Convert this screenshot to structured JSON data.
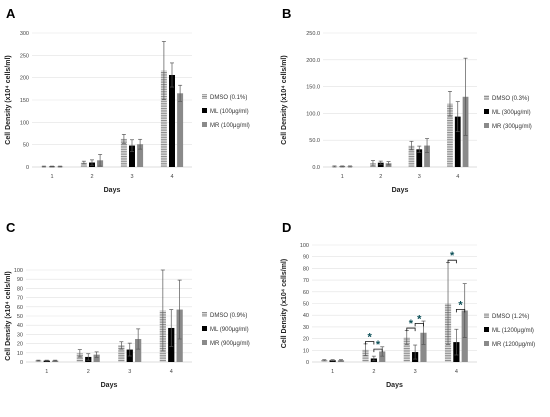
{
  "chart_data": [
    {
      "type": "bar",
      "panel": "A",
      "categories": [
        "1",
        "2",
        "3",
        "4"
      ],
      "xlabel": "Days",
      "ylabel": "Cell Density (x10⁴ cells/ml)",
      "ylim": [
        0,
        300
      ],
      "yticks": [
        "0",
        "50",
        "100",
        "150",
        "200",
        "250",
        "300"
      ],
      "grid": true,
      "legend_position": "right",
      "series": [
        {
          "name": "DMSO (0.1%)",
          "pattern": "horizontal-stripes",
          "values": [
            1,
            10,
            63,
            216
          ],
          "errors": [
            1,
            3,
            10,
            65
          ]
        },
        {
          "name": "ML (100μg/ml)",
          "pattern": "solid-black",
          "values": [
            1,
            10,
            48,
            206
          ],
          "errors": [
            1,
            6,
            13,
            27
          ]
        },
        {
          "name": "MR (100μg/ml)",
          "pattern": "solid-gray",
          "values": [
            1,
            15,
            51,
            165
          ],
          "errors": [
            1,
            13,
            11,
            18
          ]
        }
      ]
    },
    {
      "type": "bar",
      "panel": "B",
      "categories": [
        "1",
        "2",
        "3",
        "4"
      ],
      "xlabel": "Days",
      "ylabel": "Cell Density (x10⁴ cells/ml)",
      "ylim": [
        0,
        250
      ],
      "yticks": [
        "0.0",
        "50.0",
        "100.0",
        "150.0",
        "200.0",
        "250.0"
      ],
      "grid": true,
      "legend_position": "right",
      "series": [
        {
          "name": "DMSO (0.3%)",
          "pattern": "horizontal-stripes",
          "values": [
            1,
            7,
            40,
            118
          ],
          "errors": [
            1,
            5,
            8,
            23
          ]
        },
        {
          "name": "ML (300μg/ml)",
          "pattern": "solid-black",
          "values": [
            1,
            8,
            33,
            94
          ],
          "errors": [
            1,
            3,
            6,
            28
          ]
        },
        {
          "name": "MR (300μg/ml)",
          "pattern": "solid-gray",
          "values": [
            1,
            7,
            40,
            131
          ],
          "errors": [
            1,
            3,
            13,
            72
          ]
        }
      ]
    },
    {
      "type": "bar",
      "panel": "C",
      "categories": [
        "1",
        "2",
        "3",
        "4"
      ],
      "xlabel": "Days",
      "ylabel": "Cell Density (x10⁴ cells/ml)",
      "ylim": [
        0,
        100
      ],
      "yticks": [
        "0",
        "10",
        "20",
        "30",
        "40",
        "50",
        "60",
        "70",
        "80",
        "90",
        "100"
      ],
      "grid": true,
      "legend_position": "right",
      "series": [
        {
          "name": "DMSO (0.9%)",
          "pattern": "horizontal-stripes",
          "values": [
            1.5,
            9.5,
            18,
            56
          ],
          "errors": [
            0.5,
            4,
            4,
            44
          ]
        },
        {
          "name": "ML (900μg/ml)",
          "pattern": "solid-black",
          "values": [
            1.5,
            5.5,
            13.5,
            37
          ],
          "errors": [
            0.5,
            3.5,
            7,
            20
          ]
        },
        {
          "name": "MR (900μg/ml)",
          "pattern": "solid-gray",
          "values": [
            1.5,
            8,
            25,
            57
          ],
          "errors": [
            0.5,
            3,
            11,
            32
          ]
        }
      ]
    },
    {
      "type": "bar",
      "panel": "D",
      "categories": [
        "1",
        "2",
        "3",
        "4"
      ],
      "xlabel": "Days",
      "ylabel": "Cell Density (x10⁴ cells/ml)",
      "ylim": [
        0,
        100
      ],
      "yticks": [
        "0",
        "10",
        "20",
        "30",
        "40",
        "50",
        "60",
        "70",
        "80",
        "90",
        "100"
      ],
      "grid": true,
      "legend_position": "right",
      "series": [
        {
          "name": "DMSO (1.2%)",
          "pattern": "horizontal-stripes",
          "values": [
            1.5,
            10.5,
            21,
            50
          ],
          "errors": [
            0.5,
            5,
            6,
            35
          ]
        },
        {
          "name": "ML (1200μg/ml)",
          "pattern": "solid-black",
          "values": [
            1.5,
            3,
            8.5,
            17
          ],
          "errors": [
            0.5,
            2,
            6,
            11
          ]
        },
        {
          "name": "MR (1200μg/ml)",
          "pattern": "solid-gray",
          "values": [
            1.5,
            9,
            25,
            44
          ],
          "errors": [
            0.5,
            4,
            10,
            23
          ]
        }
      ],
      "annotations": [
        {
          "day": "2",
          "pair": [
            "DMSO",
            "ML"
          ],
          "label": "*"
        },
        {
          "day": "2",
          "pair": [
            "ML",
            "MR"
          ],
          "label": "*"
        },
        {
          "day": "3",
          "pair": [
            "DMSO",
            "ML"
          ],
          "label": "*"
        },
        {
          "day": "3",
          "pair": [
            "ML",
            "MR"
          ],
          "label": "*"
        },
        {
          "day": "4",
          "pair": [
            "DMSO",
            "ML"
          ],
          "label": "*"
        },
        {
          "day": "4",
          "pair": [
            "ML",
            "MR"
          ],
          "label": "*"
        }
      ]
    }
  ],
  "colors": {
    "stripes_fg": "#8f8f8f",
    "stripes_bg": "#dcdcdc",
    "ml": "#000000",
    "mr": "#8a8a8a",
    "significance": "#0b4f57"
  }
}
